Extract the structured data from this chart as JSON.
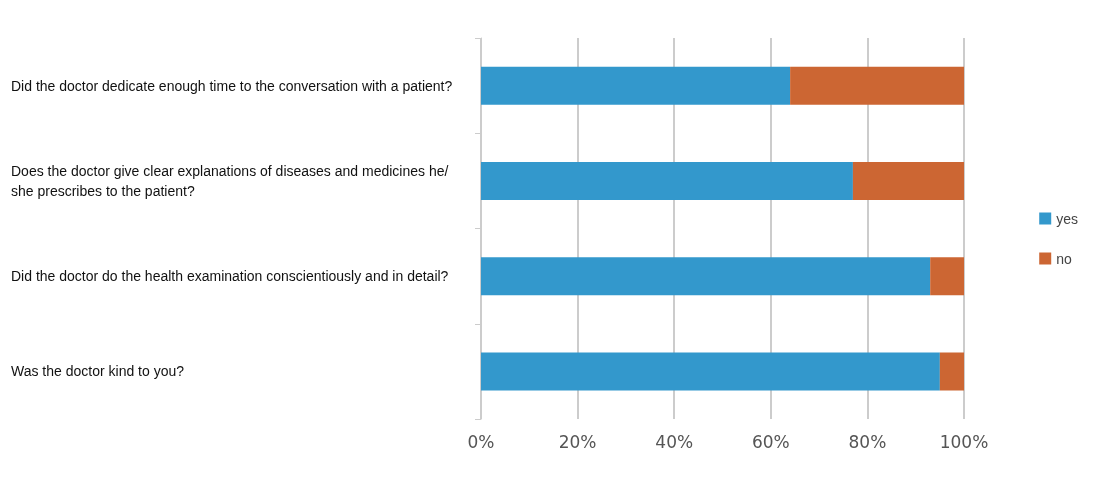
{
  "chart_data": {
    "type": "bar",
    "orientation": "horizontal",
    "stacked": true,
    "categories": [
      "Did the doctor dedicate enough time to the conversation with a patient?",
      "Does the doctor give clear explanations of diseases and medicines he/she prescribes to the patient?",
      "Did the doctor do the health examination conscientiously and in detail?",
      "Was the doctor kind to you?"
    ],
    "series": [
      {
        "name": "yes",
        "color": "#3398cc",
        "values": [
          64,
          77,
          93,
          95
        ]
      },
      {
        "name": "no",
        "color": "#cc6633",
        "values": [
          36,
          23,
          7,
          5
        ]
      }
    ],
    "xlim": [
      0,
      100
    ],
    "xticks": [
      {
        "value": 0,
        "label": "0%"
      },
      {
        "value": 20,
        "label": "20%"
      },
      {
        "value": 40,
        "label": "40%"
      },
      {
        "value": 60,
        "label": "60%"
      },
      {
        "value": 80,
        "label": "80%"
      },
      {
        "value": 100,
        "label": "100%"
      }
    ],
    "grid": "x",
    "legend": "right"
  }
}
